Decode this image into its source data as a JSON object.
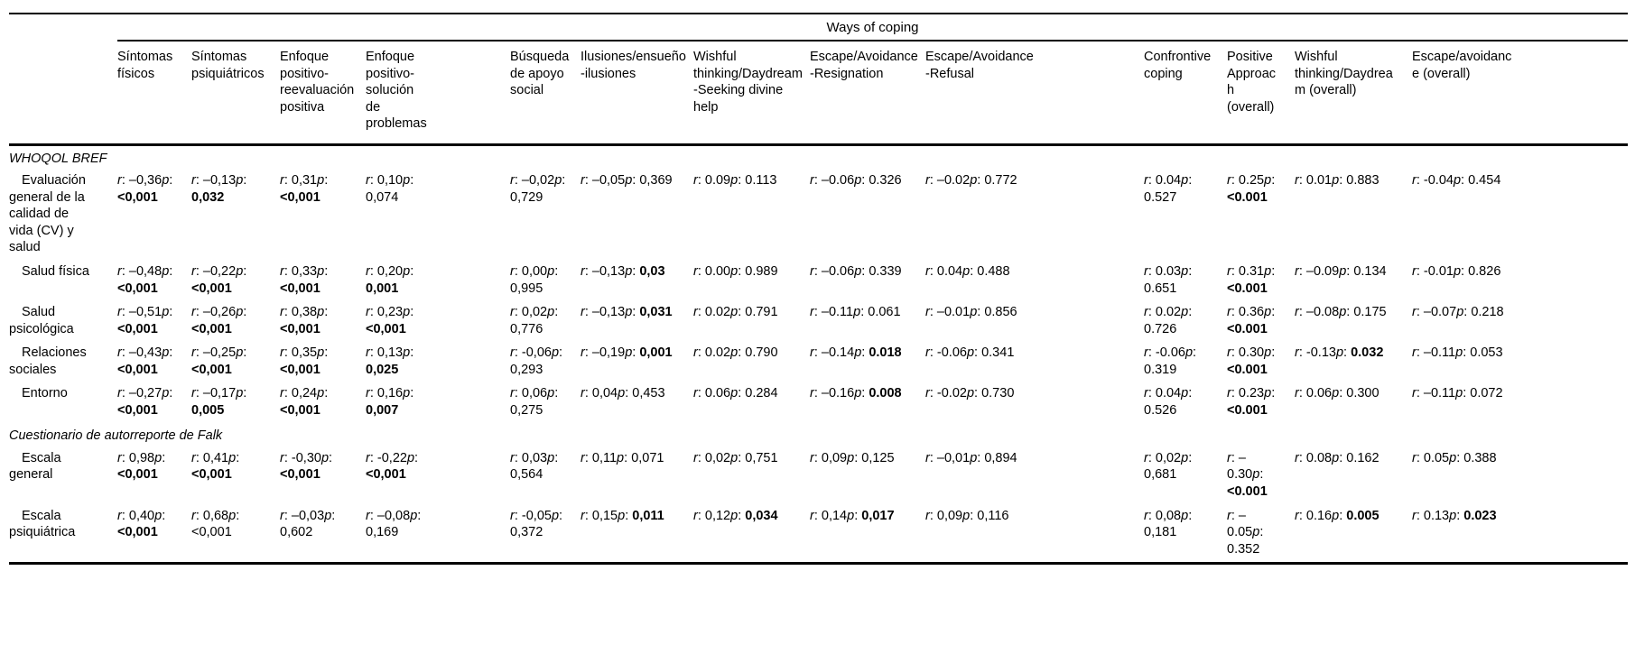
{
  "table": {
    "spanner": "Ways of coping",
    "r_label": "r",
    "p_label": "p",
    "columns": [
      "Síntomas físicos",
      "Síntomas psiquiátricos",
      "Enfoque positivo-reevaluación positiva",
      "Enfoque positivo-solución de problemas",
      "Búsqueda de apoyo social",
      "Ilusiones/ensueño-ilusiones",
      "Wishful thinking/Daydream-Seeking divine help",
      "Escape/Avoidance-Resignation",
      "Escape/Avoidance-Refusal",
      "Confrontive coping",
      "Positive Approach (overall)",
      "Wishful thinking/Daydream (overall)",
      "Escape/avoidance (overall)"
    ],
    "sections": [
      {
        "label": "WHOQOL BREF",
        "rows": [
          {
            "label": "Evaluación general de la calidad de vida (CV) y salud",
            "cells": [
              {
                "r": "–0,36",
                "p": "<0,001",
                "b": true
              },
              {
                "r": "–0,13",
                "p": "0,032",
                "b": true
              },
              {
                "r": "0,31",
                "p": "<0,001",
                "b": true
              },
              {
                "r": "0,10",
                "p": "0,074",
                "b": false
              },
              {
                "r": "–0,02",
                "p": "0,729",
                "b": false
              },
              {
                "r": "–0,05",
                "p": "0,369",
                "b": false
              },
              {
                "r": "0.09",
                "p": "0.113",
                "b": false
              },
              {
                "r": "–0.06",
                "p": "0.326",
                "b": false
              },
              {
                "r": "–0.02",
                "p": "0.772",
                "b": false
              },
              {
                "r": "0.04",
                "p": "0.527",
                "b": false
              },
              {
                "r": "0.25",
                "p": "<0.001",
                "b": true
              },
              {
                "r": "0.01",
                "p": "0.883",
                "b": false
              },
              {
                "r": "-0.04",
                "p": "0.454",
                "b": false
              }
            ]
          },
          {
            "label": "Salud física",
            "cells": [
              {
                "r": "–0,48",
                "p": "<0,001",
                "b": true
              },
              {
                "r": "–0,22",
                "p": "<0,001",
                "b": true
              },
              {
                "r": "0,33",
                "p": "<0,001",
                "b": true
              },
              {
                "r": "0,20",
                "p": "0,001",
                "b": true
              },
              {
                "r": "0,00",
                "p": "0,995",
                "b": false
              },
              {
                "r": "–0,13",
                "p": "0,03",
                "b": true
              },
              {
                "r": "0.00",
                "p": "0.989",
                "b": false
              },
              {
                "r": "–0.06",
                "p": "0.339",
                "b": false
              },
              {
                "r": "0.04",
                "p": "0.488",
                "b": false
              },
              {
                "r": "0.03",
                "p": "0.651",
                "b": false
              },
              {
                "r": "0.31",
                "p": "<0.001",
                "b": true
              },
              {
                "r": "–0.09",
                "p": "0.134",
                "b": false
              },
              {
                "r": "-0.01",
                "p": "0.826",
                "b": false
              }
            ]
          },
          {
            "label": "Salud psicológica",
            "cells": [
              {
                "r": "–0,51",
                "p": "<0,001",
                "b": true
              },
              {
                "r": "–0,26",
                "p": "<0,001",
                "b": true
              },
              {
                "r": "0,38",
                "p": "<0,001",
                "b": true
              },
              {
                "r": "0,23",
                "p": "<0,001",
                "b": true
              },
              {
                "r": "0,02",
                "p": "0,776",
                "b": false
              },
              {
                "r": "–0,13",
                "p": "0,031",
                "b": true
              },
              {
                "r": "0.02",
                "p": "0.791",
                "b": false
              },
              {
                "r": "–0.11",
                "p": "0.061",
                "b": false
              },
              {
                "r": "–0.01",
                "p": "0.856",
                "b": false
              },
              {
                "r": "0.02",
                "p": "0.726",
                "b": false
              },
              {
                "r": "0.36",
                "p": "<0.001",
                "b": true
              },
              {
                "r": "–0.08",
                "p": "0.175",
                "b": false
              },
              {
                "r": "–0.07",
                "p": "0.218",
                "b": false
              }
            ]
          },
          {
            "label": "Relaciones sociales",
            "cells": [
              {
                "r": "–0,43",
                "p": "<0,001",
                "b": true
              },
              {
                "r": "–0,25",
                "p": "<0,001",
                "b": true
              },
              {
                "r": "0,35",
                "p": "<0,001",
                "b": true
              },
              {
                "r": "0,13",
                "p": "0,025",
                "b": true
              },
              {
                "r": "-0,06",
                "p": "0,293",
                "b": false
              },
              {
                "r": "–0,19",
                "p": "0,001",
                "b": true
              },
              {
                "r": "0.02",
                "p": "0.790",
                "b": false
              },
              {
                "r": "–0.14",
                "p": "0.018",
                "b": true
              },
              {
                "r": "-0.06",
                "p": "0.341",
                "b": false
              },
              {
                "r": "-0.06",
                "p": "0.319",
                "b": false
              },
              {
                "r": "0.30",
                "p": "<0.001",
                "b": true
              },
              {
                "r": "-0.13",
                "p": "0.032",
                "b": true
              },
              {
                "r": "–0.11",
                "p": "0.053",
                "b": false
              }
            ]
          },
          {
            "label": "Entorno",
            "cells": [
              {
                "r": "–0,27",
                "p": "<0,001",
                "b": true
              },
              {
                "r": "–0,17",
                "p": "0,005",
                "b": true
              },
              {
                "r": "0,24",
                "p": "<0,001",
                "b": true
              },
              {
                "r": "0,16",
                "p": "0,007",
                "b": true
              },
              {
                "r": "0,06",
                "p": "0,275",
                "b": false
              },
              {
                "r": "0,04",
                "p": "0,453",
                "b": false
              },
              {
                "r": "0.06",
                "p": "0.284",
                "b": false
              },
              {
                "r": "–0.16",
                "p": "0.008",
                "b": true
              },
              {
                "r": "-0.02",
                "p": "0.730",
                "b": false
              },
              {
                "r": "0.04",
                "p": "0.526",
                "b": false
              },
              {
                "r": "0.23",
                "p": "<0.001",
                "b": true
              },
              {
                "r": "0.06",
                "p": "0.300",
                "b": false
              },
              {
                "r": "–0.11",
                "p": "0.072",
                "b": false
              }
            ]
          }
        ]
      },
      {
        "label": "Cuestionario de autorreporte de Falk",
        "rows": [
          {
            "label": "Escala general",
            "cells": [
              {
                "r": "0,98",
                "p": "<0,001",
                "b": true
              },
              {
                "r": "0,41",
                "p": "<0,001",
                "b": true
              },
              {
                "r": "-0,30",
                "p": "<0,001",
                "b": true
              },
              {
                "r": "-0,22",
                "p": "<0,001",
                "b": true
              },
              {
                "r": "0,03",
                "p": "0,564",
                "b": false
              },
              {
                "r": "0,11",
                "p": "0,071",
                "b": false
              },
              {
                "r": "0,02",
                "p": "0,751",
                "b": false
              },
              {
                "r": "0,09",
                "p": "0,125",
                "b": false
              },
              {
                "r": "–0,01",
                "p": "0,894",
                "b": false
              },
              {
                "r": "0,02",
                "p": "0,681",
                "b": false
              },
              {
                "r": "–0.30",
                "p": "<0.001",
                "b": true
              },
              {
                "r": "0.08",
                "p": "0.162",
                "b": false
              },
              {
                "r": "0.05",
                "p": "0.388",
                "b": false
              }
            ]
          },
          {
            "label": "Escala psiquiátrica",
            "cells": [
              {
                "r": "0,40",
                "p": "<0,001",
                "b": true
              },
              {
                "r": "0,68",
                "p": "<0,001",
                "b": false
              },
              {
                "r": "–0,03",
                "p": "0,602",
                "b": false
              },
              {
                "r": "–0,08",
                "p": "0,169",
                "b": false
              },
              {
                "r": "-0,05",
                "p": "0,372",
                "b": false
              },
              {
                "r": "0,15",
                "p": "0,011",
                "b": true
              },
              {
                "r": "0,12",
                "p": "0,034",
                "b": true
              },
              {
                "r": "0,14",
                "p": "0,017",
                "b": true
              },
              {
                "r": "0,09",
                "p": "0,116",
                "b": false
              },
              {
                "r": "0,08",
                "p": "0,181",
                "b": false
              },
              {
                "r": "–0.05",
                "p": "0.352",
                "b": false
              },
              {
                "r": "0.16",
                "p": "0.005",
                "b": true
              },
              {
                "r": "0.13",
                "p": "0.023",
                "b": true
              }
            ]
          }
        ]
      }
    ]
  }
}
